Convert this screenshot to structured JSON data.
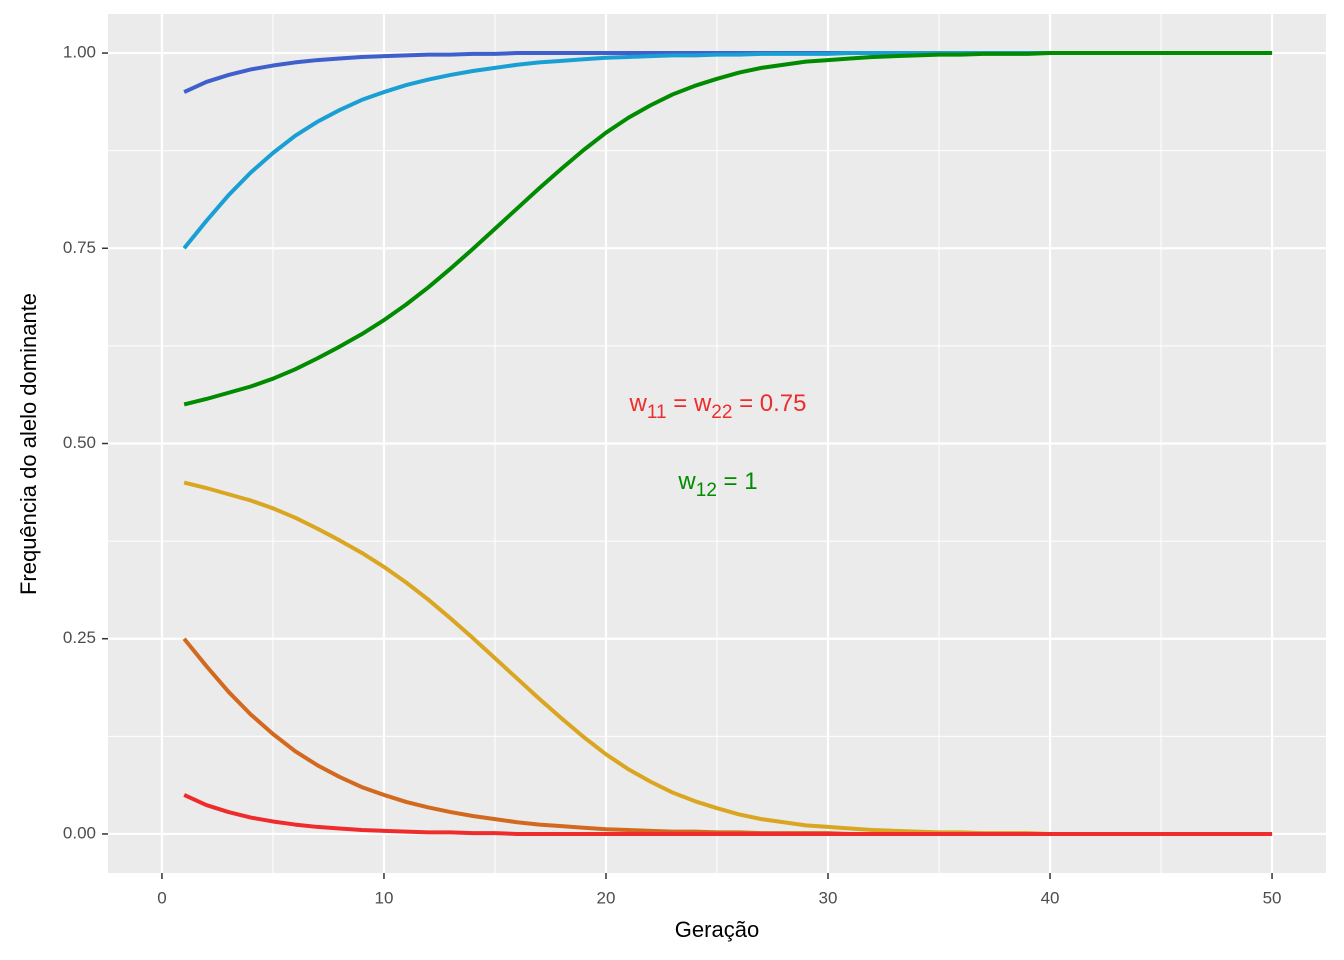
{
  "chart_data": {
    "type": "line",
    "xlabel": "Geração",
    "ylabel": "Frequência do alelo dominante",
    "xlim": [
      -2.43,
      52.43
    ],
    "ylim": [
      -0.05,
      1.05
    ],
    "xticks": [
      0,
      10,
      20,
      30,
      40,
      50
    ],
    "yticks": [
      {
        "value": 0,
        "label": "0.00"
      },
      {
        "value": 0.25,
        "label": "0.25"
      },
      {
        "value": 0.5,
        "label": "0.50"
      },
      {
        "value": 0.75,
        "label": "0.75"
      },
      {
        "value": 1,
        "label": "1.00"
      }
    ],
    "grid": true,
    "x": [
      1,
      2,
      3,
      4,
      5,
      6,
      7,
      8,
      9,
      10,
      11,
      12,
      13,
      14,
      15,
      16,
      17,
      18,
      19,
      20,
      21,
      22,
      23,
      24,
      25,
      26,
      27,
      28,
      29,
      30,
      31,
      32,
      33,
      34,
      35,
      36,
      37,
      38,
      39,
      40,
      41,
      42,
      43,
      44,
      45,
      46,
      47,
      48,
      49,
      50
    ],
    "series": [
      {
        "color": "#3f5fcc",
        "values": [
          0.95,
          0.963,
          0.972,
          0.979,
          0.984,
          0.988,
          0.991,
          0.993,
          0.995,
          0.996,
          0.997,
          0.998,
          0.998,
          0.999,
          0.999,
          1,
          1,
          1,
          1,
          1,
          1,
          1,
          1,
          1,
          1,
          1,
          1,
          1,
          1,
          1,
          1,
          1,
          1,
          1,
          1,
          1,
          1,
          1,
          1,
          1,
          1,
          1,
          1,
          1,
          1,
          1,
          1,
          1,
          1,
          1
        ]
      },
      {
        "color": "#1a9fd4",
        "values": [
          0.75,
          0.785,
          0.818,
          0.847,
          0.872,
          0.894,
          0.912,
          0.927,
          0.94,
          0.95,
          0.959,
          0.966,
          0.972,
          0.977,
          0.981,
          0.985,
          0.988,
          0.99,
          0.992,
          0.994,
          0.995,
          0.996,
          0.997,
          0.997,
          0.998,
          0.998,
          0.999,
          0.999,
          0.999,
          0.999,
          1,
          1,
          1,
          1,
          1,
          1,
          1,
          1,
          1,
          1,
          1,
          1,
          1,
          1,
          1,
          1,
          1,
          1,
          1,
          1
        ]
      },
      {
        "color": "#008b00",
        "values": [
          0.55,
          0.557,
          0.565,
          0.573,
          0.583,
          0.595,
          0.609,
          0.624,
          0.64,
          0.658,
          0.678,
          0.7,
          0.724,
          0.749,
          0.775,
          0.801,
          0.827,
          0.852,
          0.876,
          0.898,
          0.917,
          0.933,
          0.947,
          0.958,
          0.967,
          0.975,
          0.981,
          0.985,
          0.989,
          0.991,
          0.993,
          0.995,
          0.996,
          0.997,
          0.998,
          0.998,
          0.999,
          0.999,
          0.999,
          1,
          1,
          1,
          1,
          1,
          1,
          1,
          1,
          1,
          1,
          1
        ]
      },
      {
        "color": "#daa520",
        "values": [
          0.45,
          0.443,
          0.435,
          0.427,
          0.417,
          0.405,
          0.391,
          0.376,
          0.36,
          0.342,
          0.322,
          0.3,
          0.276,
          0.251,
          0.225,
          0.199,
          0.173,
          0.148,
          0.124,
          0.102,
          0.083,
          0.067,
          0.053,
          0.042,
          0.033,
          0.025,
          0.019,
          0.015,
          0.011,
          0.009,
          0.007,
          0.005,
          0.004,
          0.003,
          0.002,
          0.002,
          0.001,
          0.001,
          0.001,
          0,
          0,
          0,
          0,
          0,
          0,
          0,
          0,
          0,
          0,
          0
        ]
      },
      {
        "color": "#d2691e",
        "values": [
          0.25,
          0.215,
          0.182,
          0.153,
          0.128,
          0.106,
          0.088,
          0.073,
          0.06,
          0.05,
          0.041,
          0.034,
          0.028,
          0.023,
          0.019,
          0.015,
          0.012,
          0.01,
          0.008,
          0.006,
          0.005,
          0.004,
          0.003,
          0.003,
          0.002,
          0.002,
          0.001,
          0.001,
          0.001,
          0.001,
          0,
          0,
          0,
          0,
          0,
          0,
          0,
          0,
          0,
          0,
          0,
          0,
          0,
          0,
          0,
          0,
          0,
          0,
          0,
          0
        ]
      },
      {
        "color": "#ee2c2c",
        "values": [
          0.05,
          0.037,
          0.028,
          0.021,
          0.016,
          0.012,
          0.009,
          0.007,
          0.005,
          0.004,
          0.003,
          0.002,
          0.002,
          0.001,
          0.001,
          0,
          0,
          0,
          0,
          0,
          0,
          0,
          0,
          0,
          0,
          0,
          0,
          0,
          0,
          0,
          0,
          0,
          0,
          0,
          0,
          0,
          0,
          0,
          0,
          0,
          0,
          0,
          0,
          0,
          0,
          0,
          0,
          0,
          0,
          0
        ]
      }
    ],
    "annotations": [
      {
        "color": "#ee2c2c",
        "parts": [
          {
            "text": "w"
          },
          {
            "sub": "11"
          },
          {
            "text": " = w"
          },
          {
            "sub": "22"
          },
          {
            "text": " = 0.75"
          }
        ]
      },
      {
        "color": "#008b00",
        "parts": [
          {
            "text": "w"
          },
          {
            "sub": "12"
          },
          {
            "text": " = 1"
          }
        ]
      }
    ]
  }
}
